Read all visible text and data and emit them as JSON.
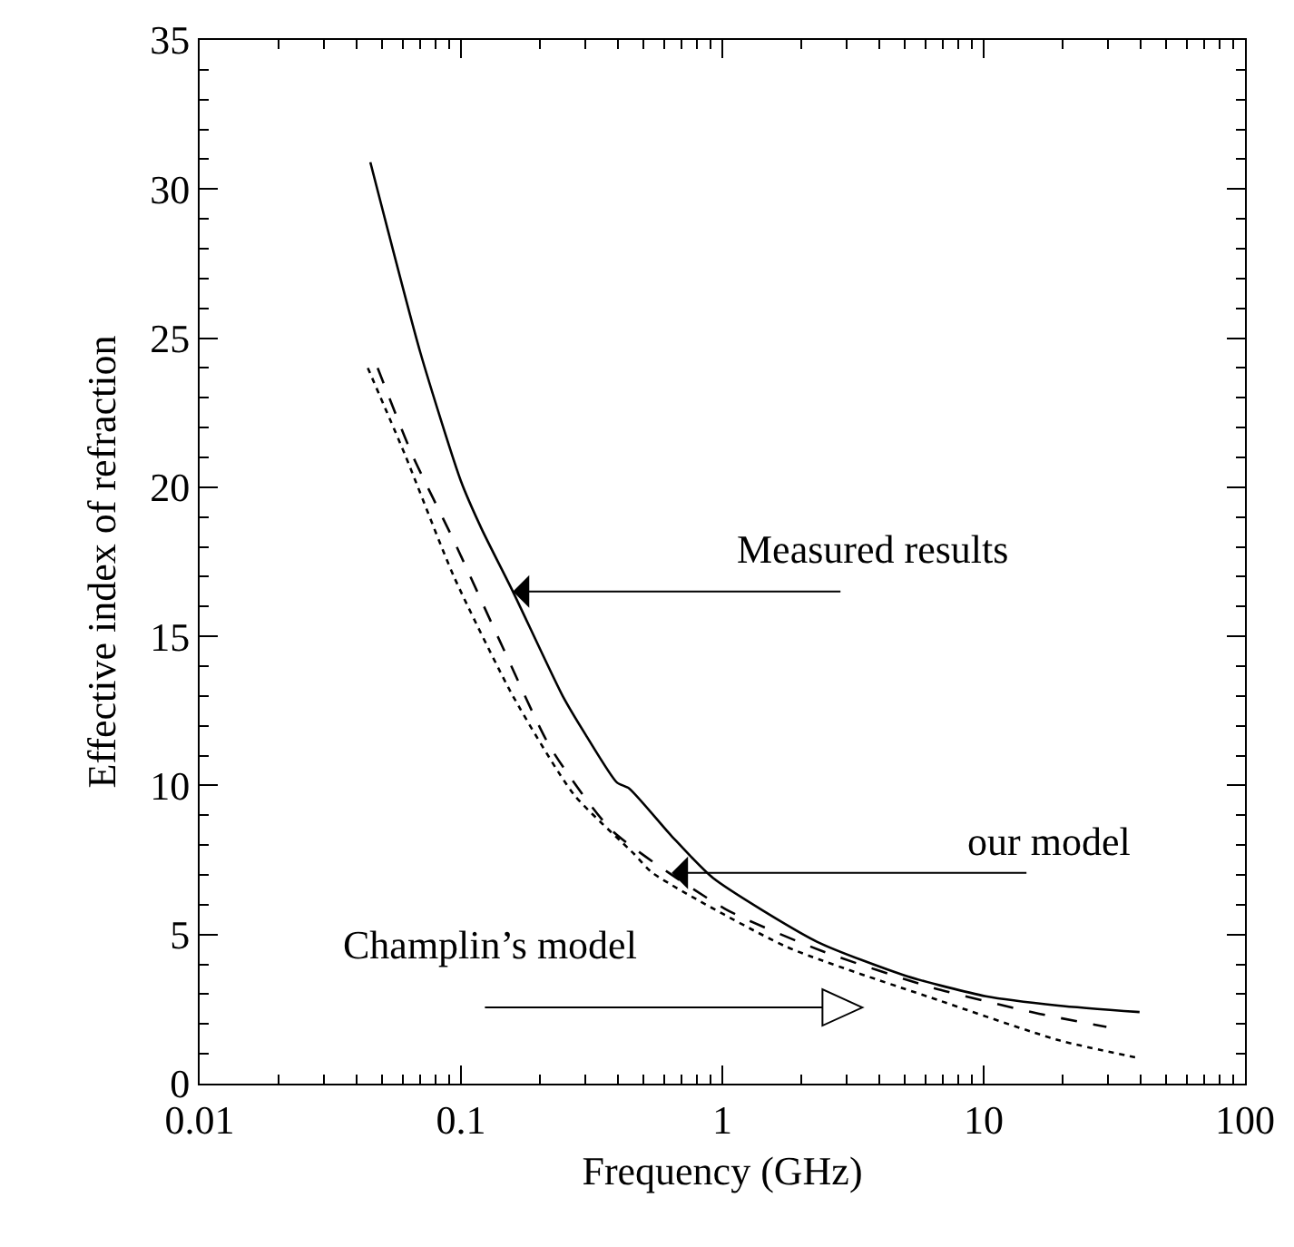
{
  "chart_data": {
    "type": "line",
    "xlabel": "Frequency (GHz)",
    "ylabel": "Effective index of refraction",
    "log": "x",
    "xlim": [
      0.01,
      100
    ],
    "xticks": [
      0.01,
      0.1,
      1,
      10,
      100
    ],
    "ylim": [
      0,
      35
    ],
    "yticks": [
      0,
      5,
      10,
      15,
      20,
      25,
      30,
      35
    ],
    "grid": false,
    "marker": "none",
    "series": [
      {
        "color": "#000000",
        "line_style": "solid",
        "x": [
          0.045,
          0.07,
          0.1,
          0.12,
          0.158,
          0.245,
          0.3,
          0.395,
          0.44,
          0.64,
          0.92,
          2.3,
          5.1,
          10.2,
          19.3,
          39.5
        ],
        "values": [
          30.9,
          24.5,
          20.2,
          18.6,
          16.5,
          13.0,
          11.7,
          10.1,
          9.9,
          8.3,
          6.9,
          4.76,
          3.6,
          2.93,
          2.62,
          2.4
        ]
      },
      {
        "color": "#000000",
        "line_style": "dashed",
        "x": [
          0.048,
          0.065,
          0.094,
          0.145,
          0.219,
          0.377,
          1.03,
          2.4,
          6.3,
          15.6,
          29.5
        ],
        "values": [
          24.0,
          21.1,
          18.2,
          14.6,
          11.3,
          8.5,
          5.85,
          4.45,
          3.23,
          2.38,
          1.9
        ]
      },
      {
        "color": "#000000",
        "line_style": "dotted",
        "x": [
          0.044,
          0.061,
          0.094,
          0.158,
          0.27,
          0.46,
          0.54,
          1.75,
          6.7,
          19.3,
          39.5
        ],
        "values": [
          24.0,
          21.1,
          17.0,
          13.0,
          9.7,
          7.7,
          7.07,
          4.6,
          2.8,
          1.46,
          0.85
        ]
      }
    ],
    "annotations": [
      {
        "text": "Measured results",
        "x": 0.158,
        "y": 16.5
      },
      {
        "text": "our model",
        "x": 0.64,
        "y": 7.07
      },
      "Champlin’s model"
    ]
  }
}
